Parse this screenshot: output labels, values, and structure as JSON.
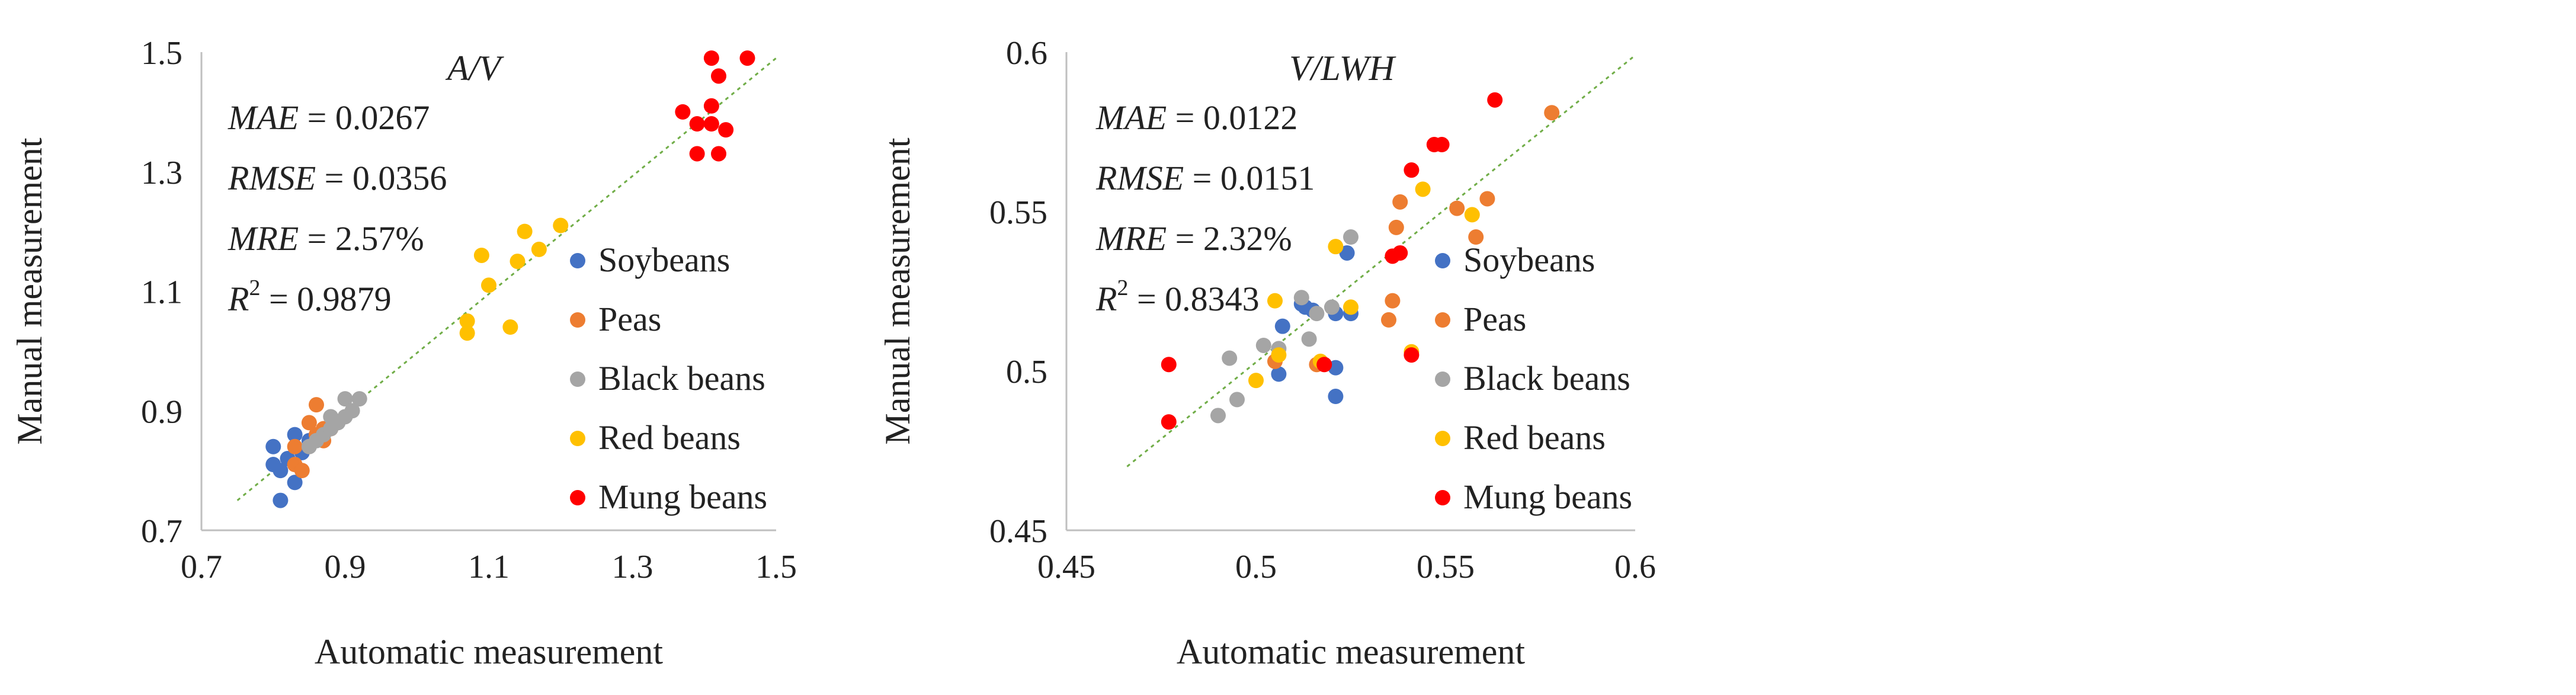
{
  "chart_data": [
    {
      "type": "scatter",
      "title": "A/V",
      "xlabel": "Automatic measurement",
      "ylabel": "Manual measurement",
      "xlim": [
        0.7,
        1.5
      ],
      "ylim": [
        0.7,
        1.5
      ],
      "xticks": [
        "0.7",
        "0.9",
        "1.1",
        "1.3",
        "1.5"
      ],
      "yticks": [
        "0.7",
        "0.9",
        "1.1",
        "1.3",
        "1.5"
      ],
      "fit_line": {
        "x1": 0.75,
        "y1": 0.75,
        "x2": 1.5,
        "y2": 1.49,
        "color": "#70AD47",
        "style": "dotted"
      },
      "stats": [
        {
          "name": "MAE",
          "value": " = 0.0267"
        },
        {
          "name": "RMSE",
          "value": " = 0.0356"
        },
        {
          "name": "MRE",
          "value": " = 2.57%"
        },
        {
          "name": "R",
          "sup": "2",
          "value": " = 0.9879"
        }
      ],
      "legend_position": "right",
      "series": [
        {
          "name": "Soybeans",
          "color": "#4472C4",
          "points": [
            [
              0.8,
              0.84
            ],
            [
              0.8,
              0.81
            ],
            [
              0.81,
              0.8
            ],
            [
              0.81,
              0.75
            ],
            [
              0.82,
              0.82
            ],
            [
              0.83,
              0.86
            ],
            [
              0.83,
              0.78
            ],
            [
              0.84,
              0.83
            ],
            [
              0.85,
              0.85
            ]
          ]
        },
        {
          "name": "Peas",
          "color": "#ED7D31",
          "points": [
            [
              0.83,
              0.84
            ],
            [
              0.83,
              0.81
            ],
            [
              0.84,
              0.8
            ],
            [
              0.85,
              0.88
            ],
            [
              0.86,
              0.91
            ],
            [
              0.86,
              0.86
            ],
            [
              0.87,
              0.87
            ],
            [
              0.87,
              0.85
            ],
            [
              0.88,
              0.87
            ]
          ]
        },
        {
          "name": "Black beans",
          "color": "#A5A5A5",
          "points": [
            [
              0.85,
              0.84
            ],
            [
              0.86,
              0.85
            ],
            [
              0.87,
              0.86
            ],
            [
              0.88,
              0.87
            ],
            [
              0.88,
              0.89
            ],
            [
              0.89,
              0.88
            ],
            [
              0.9,
              0.92
            ],
            [
              0.9,
              0.89
            ],
            [
              0.91,
              0.9
            ],
            [
              0.92,
              0.92
            ]
          ]
        },
        {
          "name": "Red beans",
          "color": "#FFC000",
          "points": [
            [
              1.07,
              1.03
            ],
            [
              1.07,
              1.05
            ],
            [
              1.09,
              1.16
            ],
            [
              1.1,
              1.11
            ],
            [
              1.13,
              1.04
            ],
            [
              1.14,
              1.15
            ],
            [
              1.15,
              1.2
            ],
            [
              1.17,
              1.17
            ],
            [
              1.2,
              1.21
            ]
          ]
        },
        {
          "name": "Mung beans",
          "color": "#FF0000",
          "points": [
            [
              1.37,
              1.4
            ],
            [
              1.39,
              1.33
            ],
            [
              1.39,
              1.38
            ],
            [
              1.41,
              1.38
            ],
            [
              1.41,
              1.41
            ],
            [
              1.41,
              1.49
            ],
            [
              1.42,
              1.46
            ],
            [
              1.42,
              1.33
            ],
            [
              1.43,
              1.37
            ],
            [
              1.46,
              1.49
            ]
          ]
        }
      ]
    },
    {
      "type": "scatter",
      "title": "V/LWH",
      "xlabel": "Automatic measurement",
      "ylabel": "Manual measurement",
      "xlim": [
        0.45,
        0.6
      ],
      "ylim": [
        0.45,
        0.6
      ],
      "xticks": [
        "0.45",
        "0.5",
        "0.55",
        "0.6"
      ],
      "yticks": [
        "0.45",
        "0.5",
        "0.55",
        "0.6"
      ],
      "fit_line": {
        "x1": 0.466,
        "y1": 0.47,
        "x2": 0.6,
        "y2": 0.599,
        "color": "#70AD47",
        "style": "dotted"
      },
      "stats": [
        {
          "name": "MAE",
          "value": " = 0.0122"
        },
        {
          "name": "RMSE",
          "value": " = 0.0151"
        },
        {
          "name": "MRE",
          "value": " = 2.32%"
        },
        {
          "name": "R",
          "sup": "2",
          "value": " = 0.8343"
        }
      ],
      "legend_position": "right",
      "series": [
        {
          "name": "Soybeans",
          "color": "#4472C4",
          "points": [
            [
              0.506,
              0.499
            ],
            [
              0.507,
              0.514
            ],
            [
              0.512,
              0.521
            ],
            [
              0.513,
              0.52
            ],
            [
              0.515,
              0.519
            ],
            [
              0.521,
              0.501
            ],
            [
              0.521,
              0.492
            ],
            [
              0.521,
              0.518
            ],
            [
              0.524,
              0.537
            ],
            [
              0.525,
              0.518
            ]
          ]
        },
        {
          "name": "Peas",
          "color": "#ED7D31",
          "points": [
            [
              0.505,
              0.503
            ],
            [
              0.516,
              0.502
            ],
            [
              0.535,
              0.516
            ],
            [
              0.536,
              0.522
            ],
            [
              0.537,
              0.545
            ],
            [
              0.538,
              0.553
            ],
            [
              0.553,
              0.551
            ],
            [
              0.558,
              0.542
            ],
            [
              0.561,
              0.554
            ],
            [
              0.578,
              0.581
            ]
          ]
        },
        {
          "name": "Black beans",
          "color": "#A5A5A5",
          "points": [
            [
              0.49,
              0.486
            ],
            [
              0.493,
              0.504
            ],
            [
              0.495,
              0.491
            ],
            [
              0.502,
              0.508
            ],
            [
              0.506,
              0.507
            ],
            [
              0.512,
              0.523
            ],
            [
              0.514,
              0.51
            ],
            [
              0.516,
              0.518
            ],
            [
              0.525,
              0.542
            ],
            [
              0.52,
              0.52
            ]
          ]
        },
        {
          "name": "Red beans",
          "color": "#FFC000",
          "points": [
            [
              0.5,
              0.497
            ],
            [
              0.505,
              0.522
            ],
            [
              0.506,
              0.505
            ],
            [
              0.517,
              0.503
            ],
            [
              0.521,
              0.539
            ],
            [
              0.525,
              0.52
            ],
            [
              0.541,
              0.506
            ],
            [
              0.544,
              0.557
            ],
            [
              0.557,
              0.549
            ]
          ]
        },
        {
          "name": "Mung beans",
          "color": "#FF0000",
          "points": [
            [
              0.477,
              0.502
            ],
            [
              0.477,
              0.484
            ],
            [
              0.518,
              0.502
            ],
            [
              0.536,
              0.536
            ],
            [
              0.538,
              0.537
            ],
            [
              0.541,
              0.505
            ],
            [
              0.541,
              0.563
            ],
            [
              0.547,
              0.571
            ],
            [
              0.549,
              0.571
            ],
            [
              0.563,
              0.585
            ]
          ]
        }
      ]
    }
  ]
}
